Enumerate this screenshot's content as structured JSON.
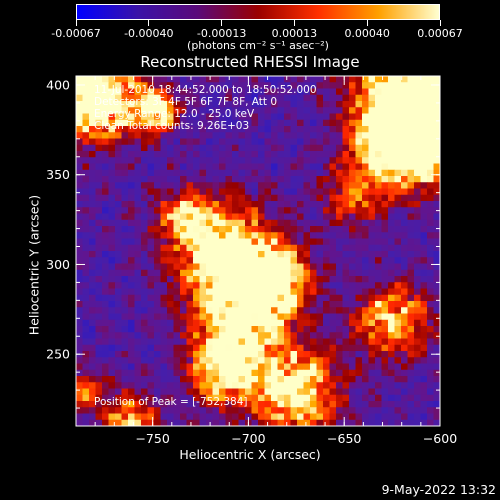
{
  "colorbar": {
    "colors": [
      "#0000ff",
      "#3a12a8",
      "#5a0a7a",
      "#9a0000",
      "#ff3000",
      "#ffa000",
      "#ffffd0"
    ],
    "tick_labels": [
      "-0.00067",
      "-0.00040",
      "-0.00013",
      "0.00013",
      "0.00040",
      "0.00067"
    ],
    "units": "(photons cm⁻² s⁻¹ asec⁻²)"
  },
  "plot": {
    "title": "Reconstructed RHESSI Image",
    "xlabel": "Heliocentric X (arcsec)",
    "ylabel": "Heliocentric Y (arcsec)",
    "xlim": [
      -790,
      -600
    ],
    "ylim": [
      210,
      405
    ],
    "x_ticks": [
      -750,
      -700,
      -650,
      -600
    ],
    "x_tick_labels": [
      "−750",
      "−700",
      "−650",
      "−600"
    ],
    "y_ticks": [
      250,
      300,
      350,
      400
    ],
    "y_tick_labels": [
      "250",
      "300",
      "350",
      "400"
    ],
    "info_lines": [
      "11-Jul-2010 18:44:52.000 to 18:50:52.000",
      "Detectors: 3F 4F 5F 6F 7F 8F, Att 0",
      "Energy Range: 12.0 - 25.0 keV",
      "Clean    Total counts: 9.26E+03"
    ],
    "peak_label": "Position of Peak = [-752,384]"
  },
  "timestamp": "9-May-2022 13:32"
}
